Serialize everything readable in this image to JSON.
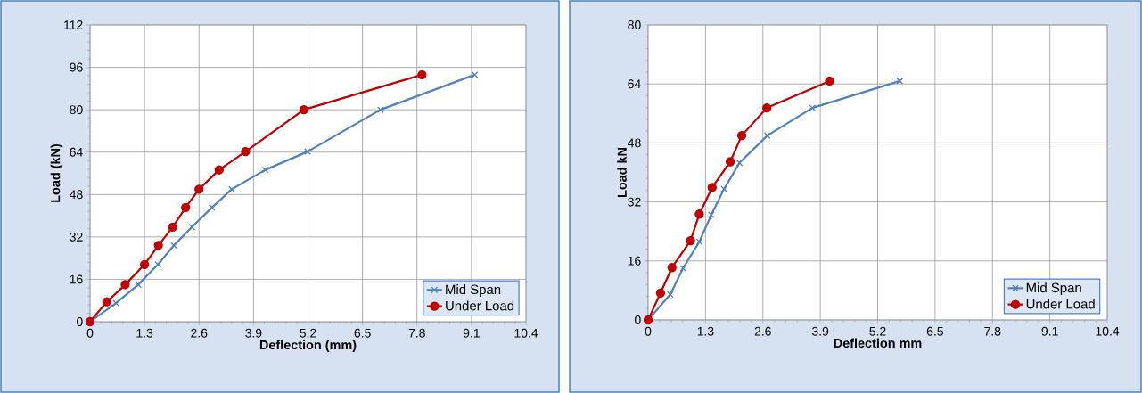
{
  "chart_data": [
    {
      "type": "line",
      "xlabel": "Deflection (mm)",
      "ylabel": "Load (kN)",
      "xlim": [
        0,
        10.4
      ],
      "ylim": [
        0,
        112
      ],
      "xticks": [
        0,
        1.3,
        2.6,
        3.9,
        5.2,
        6.5,
        7.8,
        9.1,
        10.4
      ],
      "yticks": [
        0,
        16,
        32,
        48,
        64,
        80,
        96,
        112
      ],
      "grid": true,
      "legend": "bottom right",
      "series": [
        {
          "name": "Mid Span",
          "color": "#4f81bd",
          "marker": "cross",
          "x": [
            0,
            0.62,
            1.15,
            1.62,
            2.0,
            2.43,
            2.91,
            3.38,
            4.18,
            5.19,
            6.93,
            9.18
          ],
          "values": [
            0,
            7,
            14,
            21.6,
            28.8,
            35.7,
            43.1,
            50,
            57.3,
            64.2,
            80,
            93.2
          ]
        },
        {
          "name": "Under Load",
          "color": "#c00000",
          "marker": "circle",
          "x": [
            0,
            0.4,
            0.84,
            1.3,
            1.63,
            1.97,
            2.28,
            2.6,
            3.08,
            3.71,
            5.1,
            7.92
          ],
          "values": [
            0,
            7.5,
            14,
            21.6,
            28.8,
            35.7,
            43.1,
            50,
            57.3,
            64.2,
            80,
            93.2
          ]
        }
      ]
    },
    {
      "type": "line",
      "xlabel": "Deflection mm",
      "ylabel": "Load kN",
      "xlim": [
        0,
        10.4
      ],
      "ylim": [
        0,
        80
      ],
      "xticks": [
        0,
        1.3,
        2.6,
        3.9,
        5.2,
        6.5,
        7.8,
        9.1,
        10.4
      ],
      "yticks": [
        0,
        16,
        32,
        48,
        64,
        80
      ],
      "grid": true,
      "legend": "bottom right",
      "series": [
        {
          "name": "Mid Span",
          "color": "#4f81bd",
          "marker": "cross",
          "x": [
            0,
            0.5,
            0.79,
            1.16,
            1.43,
            1.72,
            2.07,
            2.7,
            3.72,
            5.7
          ],
          "values": [
            0,
            6.9,
            14,
            21.2,
            28.5,
            35.5,
            42.6,
            50,
            57.5,
            64.8
          ]
        },
        {
          "name": "Under Load",
          "color": "#c00000",
          "marker": "circle",
          "x": [
            0,
            0.28,
            0.54,
            0.96,
            1.16,
            1.45,
            1.86,
            2.12,
            2.69,
            4.11
          ],
          "values": [
            0,
            7.3,
            14.2,
            21.5,
            28.7,
            35.9,
            42.9,
            50,
            57.5,
            64.8
          ]
        }
      ]
    }
  ]
}
